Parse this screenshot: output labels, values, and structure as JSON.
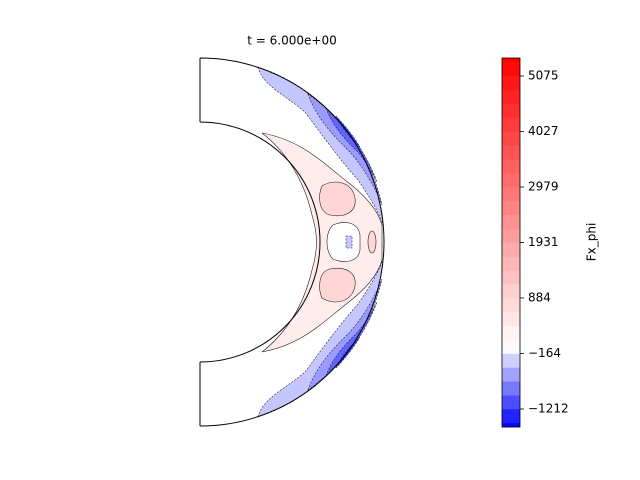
{
  "chart_data": {
    "type": "contour",
    "title": "t = 6.000e+00",
    "colorbar_label": "Fx_phi",
    "cmap": "bwr",
    "center": 0,
    "clim": [
      -1552,
      5415
    ],
    "levels": [
      -1474,
      -1212,
      -950,
      -688,
      -426,
      -164,
      98,
      360,
      622,
      884,
      1146,
      1408,
      1670,
      1931,
      2193,
      2455,
      2717,
      2979,
      3241,
      3503,
      3765,
      4027,
      4289,
      4551,
      4813,
      5075,
      5337
    ],
    "cticks": [
      {
        "value": -1212,
        "label": "−1212"
      },
      {
        "value": -164,
        "label": "−164"
      },
      884,
      1931,
      2979,
      4027,
      5075
    ]
  }
}
